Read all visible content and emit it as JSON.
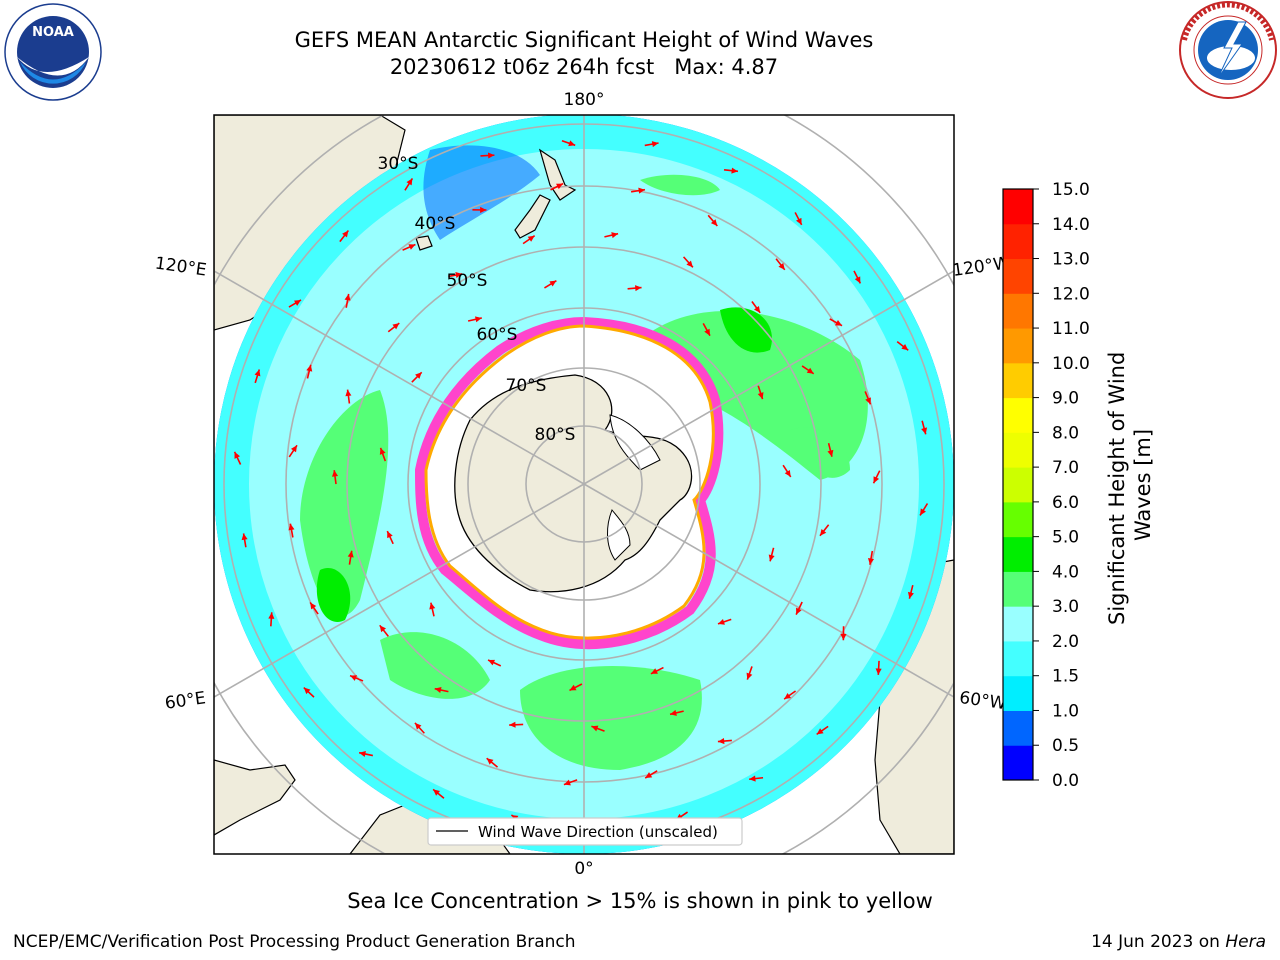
{
  "title": {
    "line1": "GEFS MEAN Antarctic Significant Height of Wind Waves",
    "line2": "20230612 t06z 264h fcst   Max: 4.87"
  },
  "map": {
    "projection": "south-polar-stereographic",
    "longitude_labels": [
      "180°",
      "120°E",
      "120°W",
      "60°E",
      "60°W",
      "0°"
    ],
    "latitude_labels": [
      "30°S",
      "40°S",
      "50°S",
      "60°S",
      "70°S",
      "80°S"
    ],
    "legend_label": "Wind Wave Direction (unscaled)",
    "colors": {
      "land": "#efecdc",
      "ice_interior": "#ffffff",
      "arrow": "#ff0000",
      "grid": "#b0b0b0",
      "ice_edge": [
        "#ff44cc",
        "#ff8800",
        "#ffdd00"
      ]
    }
  },
  "colorbar": {
    "label": "Significant Height of Wind Waves [m]",
    "ticks": [
      "0.0",
      "0.5",
      "1.0",
      "1.5",
      "2.0",
      "3.0",
      "4.0",
      "5.0",
      "6.0",
      "7.0",
      "8.0",
      "9.0",
      "10.0",
      "11.0",
      "12.0",
      "13.0",
      "14.0",
      "15.0"
    ],
    "colors": [
      "#0000ff",
      "#0066ff",
      "#00eeff",
      "#44ffff",
      "#99ffff",
      "#55ff77",
      "#00ee00",
      "#66ff00",
      "#ccff00",
      "#eeff00",
      "#ffff00",
      "#ffcc00",
      "#ff9900",
      "#ff7700",
      "#ff4400",
      "#ff2200",
      "#ff0000"
    ]
  },
  "footer": {
    "note": "Sea Ice Concentration > 15% is shown in pink to yellow",
    "credit": "NCEP/EMC/Verification Post Processing Product Generation Branch",
    "date_prefix": "14 Jun 2023 on ",
    "date_machine": "Hera"
  },
  "logos": {
    "noaa_text": "NOAA",
    "nws_text": "NATIONAL WEATHER SERVICE"
  }
}
